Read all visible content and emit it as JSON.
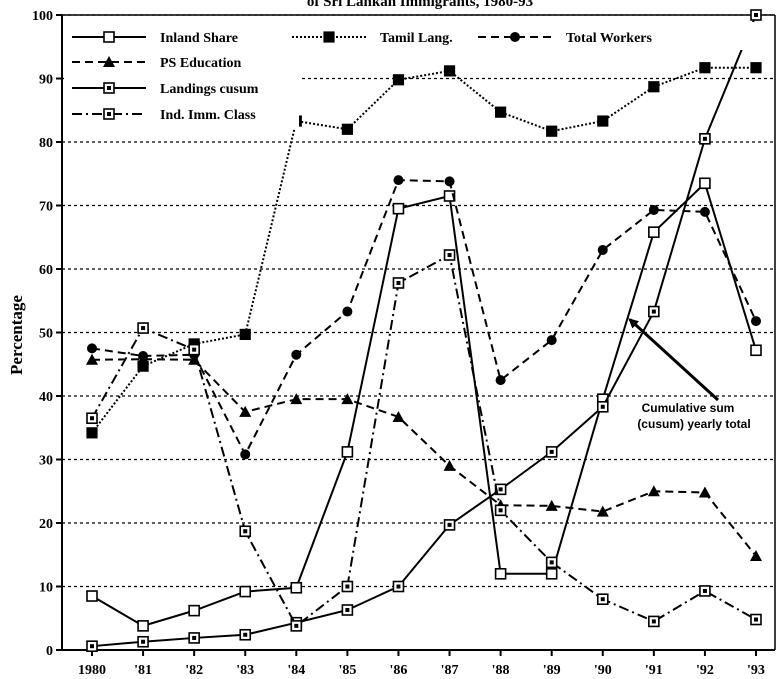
{
  "chart_data": {
    "type": "line",
    "title": "of Sri Lankan Immigrants, 1980-93",
    "ylabel": "Percentage",
    "xlabel": "",
    "ylim": [
      0,
      100
    ],
    "yticks": [
      0,
      10,
      20,
      30,
      40,
      50,
      60,
      70,
      80,
      90,
      100
    ],
    "grid": "horizontal-dotted",
    "legend_placement": "top-left",
    "categories": [
      "1980",
      "'81",
      "'82",
      "'83",
      "'84",
      "'85",
      "'86",
      "'87",
      "'88",
      "'89",
      "'90",
      "'91",
      "'92",
      "'93"
    ],
    "series": [
      {
        "name": "Inland Share",
        "line": "solid",
        "marker": "square-open",
        "values": [
          8.5,
          3.8,
          6.2,
          9.2,
          9.8,
          31.2,
          69.5,
          71.5,
          12,
          12,
          39.5,
          65.8,
          73.5,
          47.2
        ]
      },
      {
        "name": "Tamil Lang.",
        "line": "dotted",
        "marker": "square-filled",
        "values": [
          34.2,
          44.7,
          48.2,
          49.7,
          83.3,
          82,
          89.8,
          91.2,
          84.7,
          81.7,
          83.3,
          88.7,
          91.7,
          91.7
        ]
      },
      {
        "name": "Total Workers",
        "line": "dashed",
        "marker": "circle-filled",
        "values": [
          47.5,
          46.3,
          46.5,
          30.8,
          46.5,
          53.3,
          74,
          73.8,
          42.5,
          48.8,
          63,
          69.3,
          69,
          51.8
        ]
      },
      {
        "name": "PS Education",
        "line": "dashed",
        "marker": "triangle-filled",
        "values": [
          45.7,
          45.8,
          45.7,
          37.5,
          39.5,
          39.5,
          36.7,
          29,
          22.8,
          22.7,
          21.8,
          25,
          24.8,
          14.8
        ]
      },
      {
        "name": "Landings cusum",
        "line": "solid",
        "marker": "square-dot",
        "values": [
          0.6,
          1.3,
          1.9,
          2.4,
          4.3,
          6.3,
          10,
          19.7,
          25.3,
          31.2,
          38.3,
          53.3,
          80.5,
          100
        ]
      },
      {
        "name": "Ind. Imm. Class",
        "line": "dash-dot",
        "marker": "square-dot",
        "values": [
          36.5,
          50.7,
          47.3,
          18.7,
          3.8,
          10,
          57.8,
          62.2,
          22,
          13.8,
          8,
          4.5,
          9.3,
          4.8
        ]
      }
    ],
    "annotations": [
      {
        "lines": [
          "Cumulative sum",
          "(cusum) yearly total"
        ],
        "points_to": {
          "series": "Landings cusum",
          "x": "'91"
        }
      }
    ]
  }
}
